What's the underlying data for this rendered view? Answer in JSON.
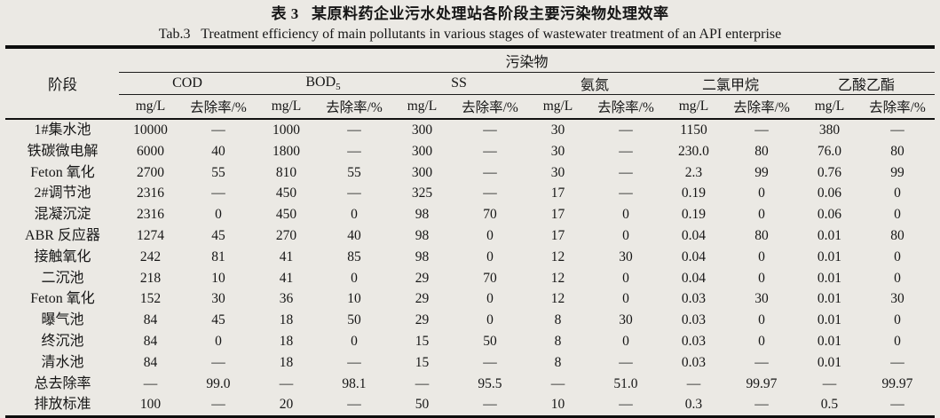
{
  "caption": {
    "zh": "表 3   某原料药企业污水处理站各阶段主要污染物处理效率",
    "en": "Tab.3   Treatment efficiency of main pollutants in various stages of wastewater treatment of an API enterprise"
  },
  "table": {
    "stage_header": "阶段",
    "pollutant_header": "污染物",
    "groups": [
      {
        "label": "COD",
        "sub": "",
        "key": "cod"
      },
      {
        "label": "BOD",
        "sub": "5",
        "key": "bod5"
      },
      {
        "label": "SS",
        "sub": "",
        "key": "ss"
      },
      {
        "label": "氨氮",
        "sub": "",
        "key": "ammonia-nitrogen"
      },
      {
        "label": "二氯甲烷",
        "sub": "",
        "key": "dichloromethane"
      },
      {
        "label": "乙酸乙酯",
        "sub": "",
        "key": "ethyl-acetate"
      }
    ],
    "unit_headers": [
      "mg/L",
      "去除率/%"
    ],
    "rows": [
      {
        "stage": "1#集水池",
        "values": [
          "10000",
          "—",
          "1000",
          "—",
          "300",
          "—",
          "30",
          "—",
          "1150",
          "—",
          "380",
          "—"
        ]
      },
      {
        "stage": "铁碳微电解",
        "values": [
          "6000",
          "40",
          "1800",
          "—",
          "300",
          "—",
          "30",
          "—",
          "230.0",
          "80",
          "76.0",
          "80"
        ]
      },
      {
        "stage": "Feton 氧化",
        "values": [
          "2700",
          "55",
          "810",
          "55",
          "300",
          "—",
          "30",
          "—",
          "2.3",
          "99",
          "0.76",
          "99"
        ]
      },
      {
        "stage": "2#调节池",
        "values": [
          "2316",
          "—",
          "450",
          "—",
          "325",
          "—",
          "17",
          "—",
          "0.19",
          "0",
          "0.06",
          "0"
        ]
      },
      {
        "stage": "混凝沉淀",
        "values": [
          "2316",
          "0",
          "450",
          "0",
          "98",
          "70",
          "17",
          "0",
          "0.19",
          "0",
          "0.06",
          "0"
        ]
      },
      {
        "stage": "ABR 反应器",
        "values": [
          "1274",
          "45",
          "270",
          "40",
          "98",
          "0",
          "17",
          "0",
          "0.04",
          "80",
          "0.01",
          "80"
        ]
      },
      {
        "stage": "接触氧化",
        "values": [
          "242",
          "81",
          "41",
          "85",
          "98",
          "0",
          "12",
          "30",
          "0.04",
          "0",
          "0.01",
          "0"
        ]
      },
      {
        "stage": "二沉池",
        "values": [
          "218",
          "10",
          "41",
          "0",
          "29",
          "70",
          "12",
          "0",
          "0.04",
          "0",
          "0.01",
          "0"
        ]
      },
      {
        "stage": "Feton 氧化",
        "values": [
          "152",
          "30",
          "36",
          "10",
          "29",
          "0",
          "12",
          "0",
          "0.03",
          "30",
          "0.01",
          "30"
        ]
      },
      {
        "stage": "曝气池",
        "values": [
          "84",
          "45",
          "18",
          "50",
          "29",
          "0",
          "8",
          "30",
          "0.03",
          "0",
          "0.01",
          "0"
        ]
      },
      {
        "stage": "终沉池",
        "values": [
          "84",
          "0",
          "18",
          "0",
          "15",
          "50",
          "8",
          "0",
          "0.03",
          "0",
          "0.01",
          "0"
        ]
      },
      {
        "stage": "清水池",
        "values": [
          "84",
          "—",
          "18",
          "—",
          "15",
          "—",
          "8",
          "—",
          "0.03",
          "—",
          "0.01",
          "—"
        ]
      },
      {
        "stage": "总去除率",
        "values": [
          "—",
          "99.0",
          "—",
          "98.1",
          "—",
          "95.5",
          "—",
          "51.0",
          "—",
          "99.97",
          "—",
          "99.97"
        ]
      },
      {
        "stage": "排放标准",
        "values": [
          "100",
          "—",
          "20",
          "—",
          "50",
          "—",
          "10",
          "—",
          "0.3",
          "—",
          "0.5",
          "—"
        ]
      }
    ]
  }
}
